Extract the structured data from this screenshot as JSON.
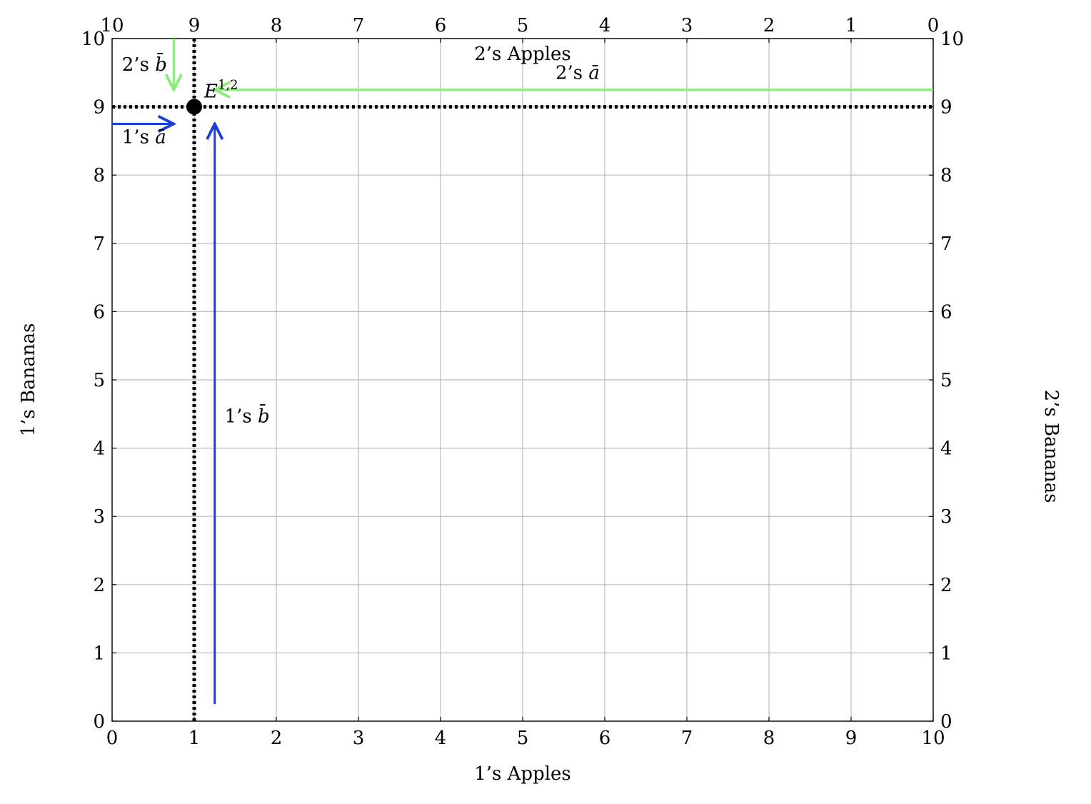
{
  "chart_data": {
    "type": "line",
    "title": "",
    "xlabel": "1’s Apples",
    "ylabel": "1’s Bananas",
    "x2label": "2’s Apples",
    "y2label": "2’s Bananas",
    "xlim": [
      0,
      10
    ],
    "ylim": [
      0,
      10
    ],
    "x2lim": [
      10,
      0
    ],
    "y2lim": [
      10,
      0
    ],
    "x_ticks": [
      "0",
      "1",
      "2",
      "3",
      "4",
      "5",
      "6",
      "7",
      "8",
      "9",
      "10"
    ],
    "y_ticks": [
      "0",
      "1",
      "2",
      "3",
      "4",
      "5",
      "6",
      "7",
      "8",
      "9",
      "10"
    ],
    "x2_ticks": [
      "10",
      "9",
      "8",
      "7",
      "6",
      "5",
      "4",
      "3",
      "2",
      "1",
      "0"
    ],
    "y2_ticks": [
      "10",
      "9",
      "8",
      "7",
      "6",
      "5",
      "4",
      "3",
      "2",
      "1",
      "0"
    ],
    "grid": true,
    "colors": {
      "agent1": "#1a3fd9",
      "agent2": "#88ee77",
      "endowment": "#000000",
      "grid": "#bbbbbb"
    },
    "endowment": {
      "point": [
        1,
        9
      ],
      "label_base": "E",
      "label_sup": "1,2"
    },
    "arrows": [
      {
        "name": "agent1-a-bar",
        "from": [
          0,
          8.75
        ],
        "to": [
          0.75,
          8.75
        ],
        "color": "#1a3fd9",
        "label_prefix": "1’s ",
        "label_symbol": "ā",
        "label_at": [
          0.12,
          8.47
        ]
      },
      {
        "name": "agent1-b-bar",
        "from": [
          1.25,
          0.25
        ],
        "to": [
          1.25,
          8.75
        ],
        "color": "#1a3fd9",
        "label_prefix": "1’s ",
        "label_symbol": "b̄",
        "label_at": [
          1.37,
          4.38
        ]
      },
      {
        "name": "agent2-a-bar",
        "from": [
          10,
          9.25
        ],
        "to": [
          1.25,
          9.25
        ],
        "color": "#88ee77",
        "label_prefix": "2’s ",
        "label_symbol": "ā",
        "label_at": [
          5.4,
          9.41
        ]
      },
      {
        "name": "agent2-b-bar",
        "from": [
          0.75,
          10
        ],
        "to": [
          0.75,
          9.25
        ],
        "color": "#88ee77",
        "label_prefix": "2’s ",
        "label_symbol": "b̄",
        "label_at": [
          0.12,
          9.53
        ]
      }
    ]
  }
}
